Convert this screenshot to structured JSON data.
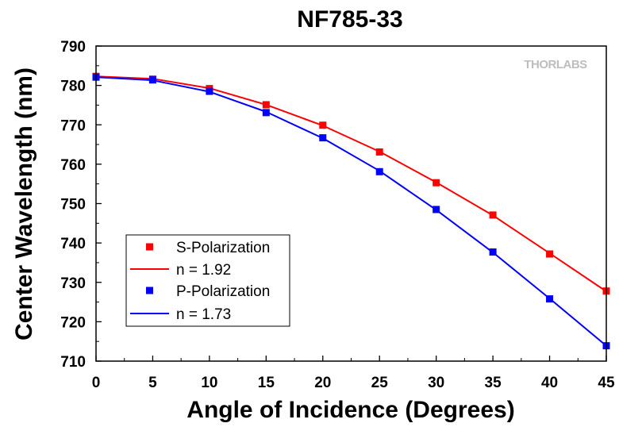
{
  "chart_data": {
    "type": "line",
    "title": "NF785-33",
    "xlabel": "Angle of Incidence (Degrees)",
    "ylabel": "Center Wavelength (nm)",
    "xlim": [
      0,
      45
    ],
    "ylim": [
      710,
      790
    ],
    "xticks": [
      "0",
      "5",
      "10",
      "15",
      "20",
      "25",
      "30",
      "35",
      "40",
      "45"
    ],
    "yticks": [
      "710",
      "720",
      "730",
      "740",
      "750",
      "760",
      "770",
      "780",
      "790"
    ],
    "grid": false,
    "legend_position": "bottom-left",
    "logo": "THORLABS",
    "series": [
      {
        "name": "S-Polarization",
        "kind": "markers",
        "color": "#ff0000",
        "x": [
          0,
          5,
          10,
          15,
          20,
          25,
          30,
          35,
          40,
          45
        ],
        "y": [
          782.3,
          781.6,
          779.2,
          775.1,
          769.9,
          763.1,
          755.3,
          747.1,
          737.2,
          727.8
        ]
      },
      {
        "name": "n = 1.92",
        "kind": "line",
        "color": "#ff0000",
        "x": [
          0,
          5,
          10,
          15,
          20,
          25,
          30,
          35,
          40,
          45
        ],
        "y": [
          782.3,
          781.7,
          779.3,
          775.1,
          769.8,
          763.2,
          755.4,
          747.0,
          737.4,
          727.7
        ]
      },
      {
        "name": "P-Polarization",
        "kind": "markers",
        "color": "#0000ff",
        "x": [
          0,
          5,
          10,
          15,
          20,
          25,
          30,
          35,
          40,
          45
        ],
        "y": [
          782.1,
          781.4,
          778.5,
          773.1,
          766.7,
          758.1,
          748.5,
          737.7,
          725.8,
          713.9
        ]
      },
      {
        "name": "n = 1.73",
        "kind": "line",
        "color": "#0000ff",
        "x": [
          0,
          5,
          10,
          15,
          20,
          25,
          30,
          35,
          40,
          45
        ],
        "y": [
          782.1,
          781.3,
          778.4,
          773.3,
          766.6,
          758.3,
          748.4,
          737.6,
          725.9,
          713.9
        ]
      }
    ]
  }
}
